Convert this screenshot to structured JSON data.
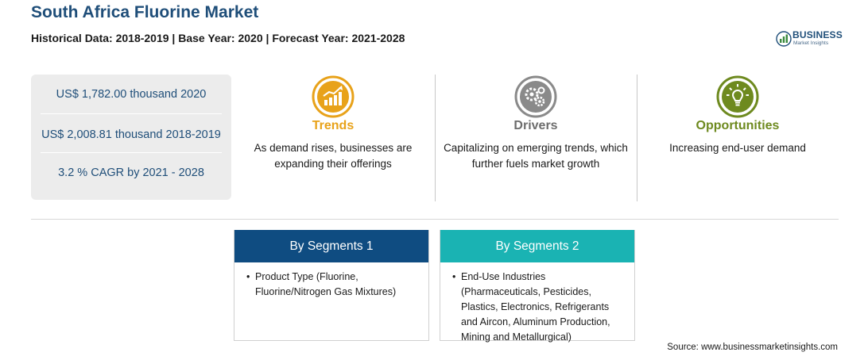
{
  "header": {
    "title": "South Africa Fluorine Market",
    "subtitle": "Historical Data: 2018-2019 | Base Year: 2020 | Forecast Year: 2021-2028"
  },
  "logo": {
    "name": "BUSINESS",
    "tagline": "Market Insights"
  },
  "stats": [
    "US$ 1,782.00 thousand 2020",
    "US$ 2,008.81 thousand 2018-2019",
    "3.2 % CAGR by 2021 - 2028"
  ],
  "columns": {
    "trends": {
      "heading": "Trends",
      "text": "As demand rises, businesses are expanding their offerings",
      "icon": "growth-chart-icon"
    },
    "drivers": {
      "heading": "Drivers",
      "text": "Capitalizing on emerging trends, which further fuels market growth",
      "icon": "gears-icon"
    },
    "opportunities": {
      "heading": "Opportunities",
      "text": "Increasing end-user demand",
      "icon": "lightbulb-icon"
    }
  },
  "segments": [
    {
      "title": "By Segments 1",
      "bullet": "•",
      "text": "Product Type (Fluorine, Fluorine/Nitrogen Gas Mixtures)"
    },
    {
      "title": "By Segments 2",
      "bullet": "•",
      "text": "End-Use Industries (Pharmaceuticals, Pesticides, Plastics, Electronics, Refrigerants and Aircon, Aluminum Production, Mining and Metallurgical)"
    }
  ],
  "source": "Source: www.businessmarketinsights.com",
  "colors": {
    "title": "#1f4e79",
    "trends": "#e8a21a",
    "drivers": "#6d6d6d",
    "opportunities": "#6e8a1f",
    "segment1": "#0f4c81",
    "segment2": "#1ab3b3"
  }
}
